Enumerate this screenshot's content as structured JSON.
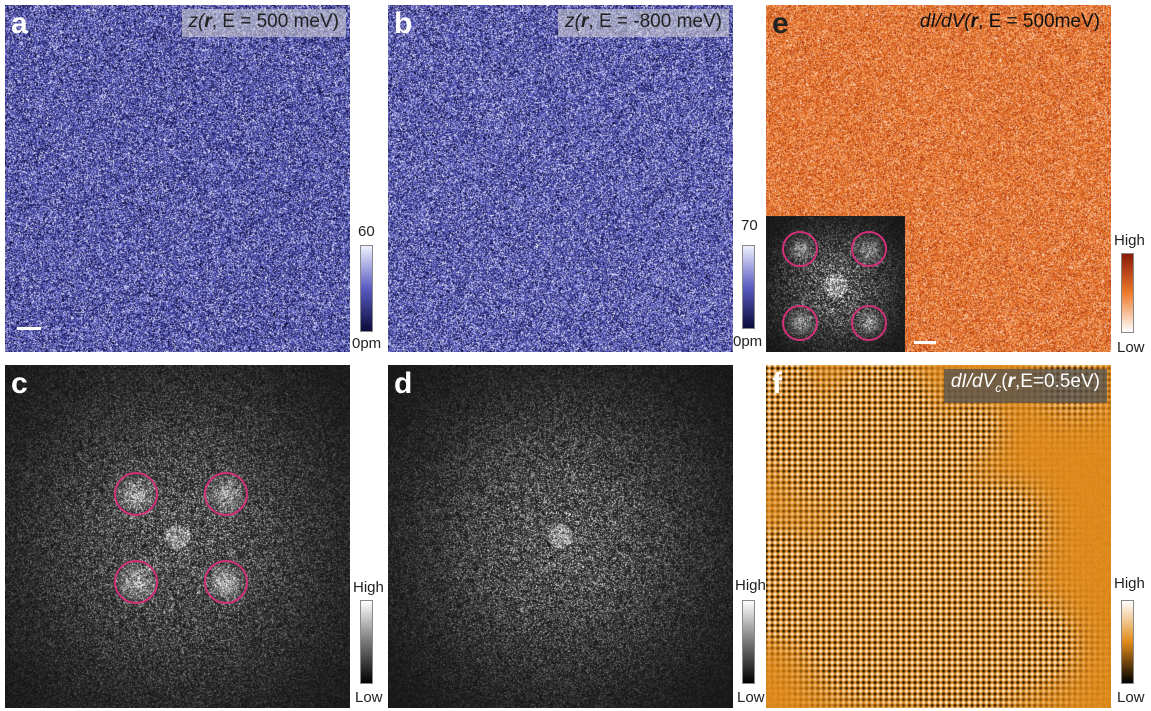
{
  "panels": {
    "a": {
      "label": "a",
      "title_pre": "z(",
      "title_bold": "r",
      "title_post": ", E = 500 meV)",
      "cbar_high": "60",
      "cbar_low": "0pm",
      "colormap": "blue"
    },
    "b": {
      "label": "b",
      "title_pre": "z(",
      "title_bold": "r",
      "title_post": ", E = -800 meV)",
      "cbar_high": "70",
      "cbar_low": "0pm",
      "colormap": "blue"
    },
    "c": {
      "label": "c",
      "cbar_high": "High",
      "cbar_low": "Low",
      "colormap": "gray"
    },
    "d": {
      "label": "d",
      "cbar_high": "High",
      "cbar_low": "Low",
      "colormap": "gray"
    },
    "e": {
      "label": "e",
      "title_pre": "dI/dV(",
      "title_bold": "r",
      "title_post": ", E = 500meV)",
      "cbar_high": "High",
      "cbar_low": "Low",
      "colormap": "orange"
    },
    "f": {
      "label": "f",
      "title_pre": "dI/dV",
      "title_sub": "c",
      "title_mid": "(",
      "title_bold": "r",
      "title_post": ",E=0.5eV)",
      "cbar_high": "High",
      "cbar_low": "Low",
      "colormap": "copper"
    }
  },
  "colors": {
    "circle": "#d4307a",
    "blue_high": "#eef0ff",
    "blue_mid": "#5a5cc2",
    "blue_low": "#0a0a3a",
    "orange_high": "#8a1a0a",
    "orange_mid": "#ee7a2a",
    "orange_low": "#ffffff",
    "copper_high": "#ffffff",
    "copper_mid": "#e08a1a",
    "copper_low": "#000000"
  }
}
